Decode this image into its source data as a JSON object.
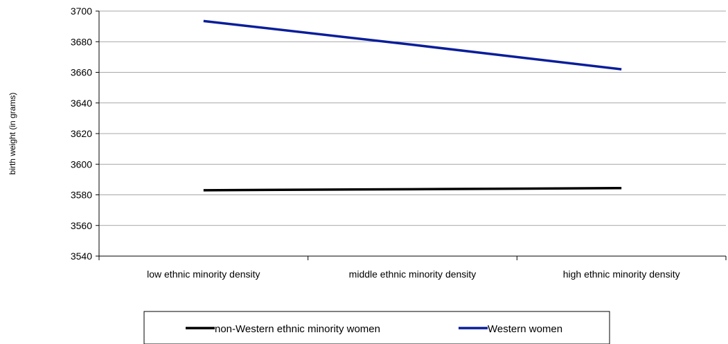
{
  "chart_data": {
    "type": "line",
    "categories": [
      "low ethnic minority density",
      "middle ethnic minority density",
      "high ethnic minority density"
    ],
    "series": [
      {
        "name": "non-Western ethnic minority women",
        "values": [
          3583,
          3583.7,
          3584.4
        ],
        "color": "#000000"
      },
      {
        "name": "Western women",
        "values": [
          3693.5,
          3678,
          3662
        ],
        "color": "#0a1e9a"
      }
    ],
    "ylabel": "birth weight (in grams)",
    "ylim": [
      3540,
      3700
    ],
    "yticks": [
      3540,
      3560,
      3580,
      3600,
      3620,
      3640,
      3660,
      3680,
      3700
    ],
    "grid": true,
    "legend": "bottom"
  }
}
